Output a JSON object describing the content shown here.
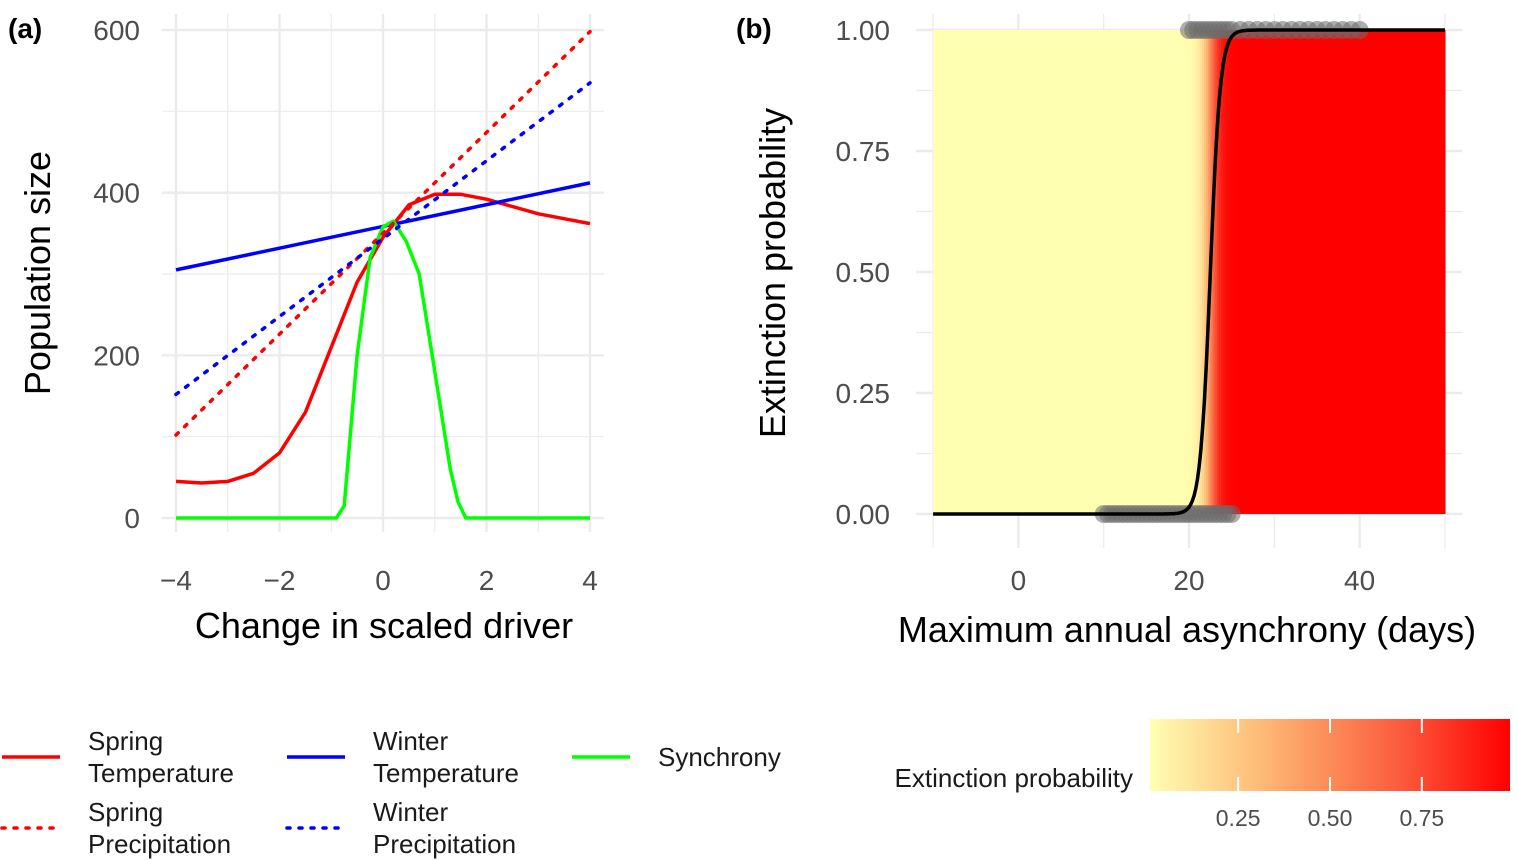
{
  "chart_data": [
    {
      "panel": "(a)",
      "type": "line",
      "xlabel": "Change in scaled driver",
      "ylabel": "Population size",
      "xlim": [
        -4,
        4
      ],
      "ylim": [
        0,
        600
      ],
      "x_ticks": [
        "−4",
        "−2",
        "0",
        "2",
        "4"
      ],
      "y_ticks": [
        "0",
        "200",
        "400",
        "600"
      ],
      "grid": true,
      "legend_position": "bottom",
      "series": [
        {
          "name": "Spring Temperature",
          "legend_lines": [
            "Spring",
            "Temperature"
          ],
          "color": "#ff0000",
          "linestyle": "solid",
          "points": [
            [
              -4,
              45
            ],
            [
              -3.5,
              43
            ],
            [
              -3,
              45
            ],
            [
              -2.5,
              55
            ],
            [
              -2,
              80
            ],
            [
              -1.5,
              130
            ],
            [
              -1,
              210
            ],
            [
              -0.5,
              290
            ],
            [
              0,
              345
            ],
            [
              0.5,
              385
            ],
            [
              1,
              398
            ],
            [
              1.5,
              398
            ],
            [
              2,
              392
            ],
            [
              2.5,
              383
            ],
            [
              3,
              374
            ],
            [
              3.5,
              368
            ],
            [
              4,
              362
            ]
          ]
        },
        {
          "name": "Winter Temperature",
          "legend_lines": [
            "Winter",
            "Temperature"
          ],
          "color": "#0000ff",
          "linestyle": "solid",
          "points": [
            [
              -4,
              305
            ],
            [
              4,
              412
            ]
          ]
        },
        {
          "name": "Synchrony",
          "legend_lines": [
            "Synchrony"
          ],
          "color": "#00ff00",
          "linestyle": "solid",
          "points": [
            [
              -4,
              0
            ],
            [
              -0.9,
              0
            ],
            [
              -0.75,
              15
            ],
            [
              -0.5,
              200
            ],
            [
              -0.25,
              320
            ],
            [
              0,
              358
            ],
            [
              0.2,
              365
            ],
            [
              0.45,
              340
            ],
            [
              0.7,
              300
            ],
            [
              1,
              180
            ],
            [
              1.3,
              60
            ],
            [
              1.45,
              20
            ],
            [
              1.6,
              0
            ],
            [
              4,
              0
            ]
          ]
        },
        {
          "name": "Spring Precipitation",
          "legend_lines": [
            "Spring",
            "Precipitation"
          ],
          "color": "#ff0000",
          "linestyle": "dotted",
          "points": [
            [
              -4,
              102
            ],
            [
              4,
              598
            ]
          ]
        },
        {
          "name": "Winter Precipitation",
          "legend_lines": [
            "Winter",
            "Precipitation"
          ],
          "color": "#0000ff",
          "linestyle": "dotted",
          "points": [
            [
              -4,
              152
            ],
            [
              4,
              535
            ]
          ]
        }
      ]
    },
    {
      "panel": "(b)",
      "type": "scatter",
      "xlabel": "Maximum annual asynchrony (days)",
      "ylabel": "Extinction probability",
      "xlim": [
        -12,
        52
      ],
      "ylim": [
        0,
        1
      ],
      "x_ticks": [
        "0",
        "20",
        "40"
      ],
      "y_ticks": [
        "0.00",
        "0.25",
        "0.50",
        "0.75",
        "1.00"
      ],
      "grid": true,
      "background_fill": "extinction probability heat band from x = -10 to x = 50",
      "fitted_curve": {
        "type": "logistic",
        "midpoint": 22.5,
        "slope": 1.7,
        "x_range": [
          -10,
          50
        ],
        "color": "#000000"
      },
      "points_y0_x": [
        10,
        10.5,
        11,
        11.5,
        12,
        12.5,
        13,
        13.5,
        14,
        14.5,
        15,
        15.5,
        16,
        16.5,
        17,
        17.5,
        18,
        18.5,
        19,
        19.5,
        20,
        20.5,
        21,
        21.5,
        22,
        22.5,
        23,
        23.5,
        24,
        24.5,
        25
      ],
      "points_y1_x": [
        20,
        20.5,
        21,
        21.5,
        22,
        22.5,
        23,
        23.5,
        24,
        24.5,
        25,
        26,
        27,
        28,
        29,
        30,
        31,
        32,
        33,
        34,
        35,
        36,
        37,
        38,
        39,
        40
      ],
      "point_color": "#6b6b6b",
      "legend": {
        "title": "Extinction probability",
        "type": "colorbar",
        "ticks": [
          "0.25",
          "0.50",
          "0.75"
        ],
        "tick_values": [
          0.25,
          0.5,
          0.75
        ],
        "range": [
          0.01,
          0.99
        ],
        "low_color": "#ffffb2",
        "high_color": "#ff0000"
      }
    }
  ]
}
